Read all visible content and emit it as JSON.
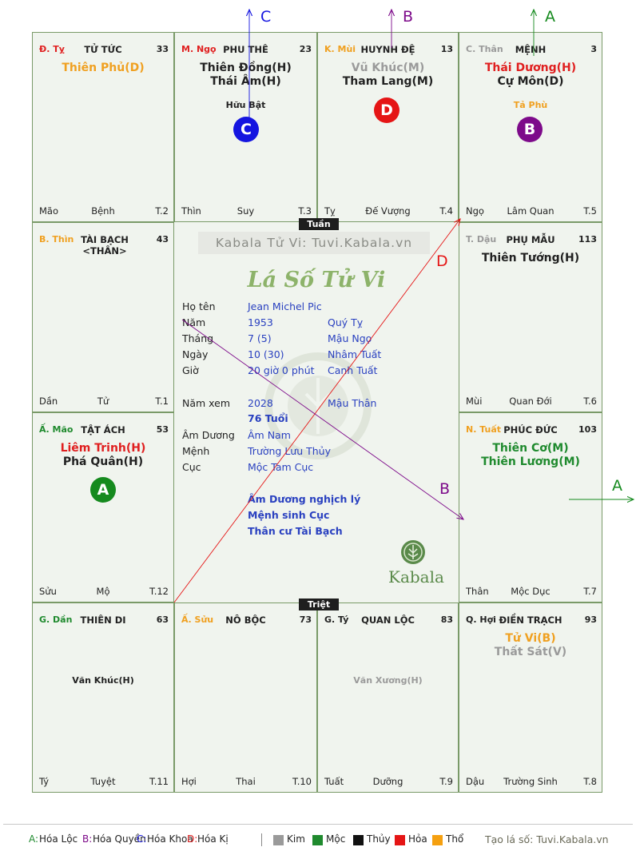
{
  "palaces": [
    {
      "id": "ti",
      "can": "Đ. Tỵ",
      "can_color": "#e02020",
      "title": "TỬ TỨC",
      "num": "33",
      "main": [
        {
          "t": "Thiên Phủ(D)",
          "c": "#f0a020"
        }
      ],
      "minor": [],
      "foot": [
        "Mão",
        "Bệnh",
        "T.2"
      ]
    },
    {
      "id": "ngo",
      "can": "M. Ngọ",
      "can_color": "#e02020",
      "title": "PHU THÊ",
      "num": "23",
      "main": [
        {
          "t": "Thiên Đồng(H)",
          "c": "#222222"
        },
        {
          "t": "Thái Âm(H)",
          "c": "#222222"
        }
      ],
      "minor": [
        {
          "t": "Hữu Bật",
          "c": "#222222"
        }
      ],
      "foot": [
        "Thìn",
        "Suy",
        "T.3"
      ]
    },
    {
      "id": "mui",
      "can": "K. Mùi",
      "can_color": "#f0a020",
      "title": "HUYNH ĐỆ",
      "num": "13",
      "main": [
        {
          "t": "Vũ Khúc(M)",
          "c": "#9a9a9a"
        },
        {
          "t": "Tham Lang(M)",
          "c": "#222222"
        }
      ],
      "minor": [],
      "foot": [
        "Tỵ",
        "Đế Vượng",
        "T.4"
      ]
    },
    {
      "id": "than",
      "can": "C. Thân",
      "can_color": "#9a9a9a",
      "title": "MỆNH",
      "num": "3",
      "main": [
        {
          "t": "Thái Dương(H)",
          "c": "#e02020"
        },
        {
          "t": "Cự Môn(D)",
          "c": "#222222"
        }
      ],
      "minor": [
        {
          "t": "Tả Phù",
          "c": "#f0a020"
        }
      ],
      "foot": [
        "Ngọ",
        "Lâm Quan",
        "T.5"
      ]
    },
    {
      "id": "thin",
      "can": "B. Thìn",
      "can_color": "#f0a020",
      "title": "TÀI BẠCH <THÂN>",
      "num": "43",
      "main": [],
      "minor": [],
      "foot": [
        "Dần",
        "Tử",
        "T.1"
      ]
    },
    {
      "id": "dau",
      "can": "T. Dậu",
      "can_color": "#9a9a9a",
      "title": "PHỤ MẪU",
      "num": "113",
      "main": [
        {
          "t": "Thiên Tướng(H)",
          "c": "#222222"
        }
      ],
      "minor": [],
      "foot": [
        "Mùi",
        "Quan Đới",
        "T.6"
      ]
    },
    {
      "id": "mao",
      "can": "Ấ. Mão",
      "can_color": "#1f8a2e",
      "title": "TẬT ÁCH",
      "num": "53",
      "main": [
        {
          "t": "Liêm Trinh(H)",
          "c": "#e02020"
        },
        {
          "t": "Phá Quân(H)",
          "c": "#222222"
        }
      ],
      "minor": [],
      "foot": [
        "Sửu",
        "Mộ",
        "T.12"
      ]
    },
    {
      "id": "tuat",
      "can": "N. Tuất",
      "can_color": "#f0a020",
      "title": "PHÚC ĐỨC",
      "num": "103",
      "main": [
        {
          "t": "Thiên Cơ(M)",
          "c": "#1f8a2e"
        },
        {
          "t": "Thiên Lương(M)",
          "c": "#1f8a2e"
        }
      ],
      "minor": [],
      "foot": [
        "Thân",
        "Mộc Dục",
        "T.7"
      ]
    },
    {
      "id": "dan",
      "can": "G. Dần",
      "can_color": "#1f8a2e",
      "title": "THIÊN DI",
      "num": "63",
      "main": [],
      "minor": [
        {
          "t": "Văn Khúc(H)",
          "c": "#222222"
        }
      ],
      "foot": [
        "Tý",
        "Tuyệt",
        "T.11"
      ]
    },
    {
      "id": "suu",
      "can": "Ấ. Sửu",
      "can_color": "#f0a020",
      "title": "NÔ BỘC",
      "num": "73",
      "main": [],
      "minor": [],
      "foot": [
        "Hợi",
        "Thai",
        "T.10"
      ]
    },
    {
      "id": "ty",
      "can": "G. Tý",
      "can_color": "#222222",
      "title": "QUAN LỘC",
      "num": "83",
      "main": [],
      "minor": [
        {
          "t": "Văn Xương(H)",
          "c": "#9a9a9a"
        }
      ],
      "foot": [
        "Tuất",
        "Dưỡng",
        "T.9"
      ]
    },
    {
      "id": "hoi",
      "can": "Q. Hợi",
      "can_color": "#222222",
      "title": "ĐIỀN TRẠCH",
      "num": "93",
      "main": [
        {
          "t": "Tử Vi(B)",
          "c": "#f0a020"
        },
        {
          "t": "Thất Sát(V)",
          "c": "#9a9a9a"
        }
      ],
      "minor": [],
      "foot": [
        "Dậu",
        "Trường Sinh",
        "T.8"
      ]
    }
  ],
  "badges": [
    {
      "label": "C",
      "color": "#1515e0",
      "palace": "ngo"
    },
    {
      "label": "D",
      "color": "#e51515",
      "palace": "mui"
    },
    {
      "label": "B",
      "color": "#7d0a8a",
      "palace": "than"
    },
    {
      "label": "A",
      "color": "#158a1e",
      "palace": "mao"
    }
  ],
  "tags": {
    "tuan": "Tuần",
    "triet": "Triệt"
  },
  "center": {
    "banner": "Kabala Tử Vi: Tuvi.Kabala.vn",
    "title": "Lá Số Tử Vi",
    "rows": [
      {
        "k": "Họ tên",
        "v": "Jean Michel Pic",
        "v2": ""
      },
      {
        "k": "Năm",
        "v": "1953",
        "v2": "Quý Tỵ"
      },
      {
        "k": "Tháng",
        "v": "7  (5)",
        "v2": "Mậu Ngọ"
      },
      {
        "k": "Ngày",
        "v": "10  (30)",
        "v2": "Nhâm Tuất"
      },
      {
        "k": "Giờ",
        "v": "20 giờ 0 phút",
        "v2": "Canh Tuất"
      }
    ],
    "nam_xem": {
      "k": "Năm xem",
      "v": "2028",
      "v2": "Mậu Thân"
    },
    "tuoi": "76 Tuổi",
    "rows2": [
      {
        "k": "Âm Dương",
        "v": "Âm Nam"
      },
      {
        "k": "Mệnh",
        "v": "Trường Lưu Thủy"
      },
      {
        "k": "Cục",
        "v": "Mộc Tam Cục"
      }
    ],
    "notes": [
      "Âm Dương nghịch lý",
      "Mệnh sinh Cục",
      "Thân cư Tài Bạch"
    ],
    "logo_text": "Kabala"
  },
  "arrow_labels": {
    "a_top": "A",
    "b_top": "B",
    "c_top": "C",
    "d_diag": "D",
    "b_diag": "B",
    "a_right": "A"
  },
  "legend": {
    "hoa": [
      {
        "key": "A:",
        "text": "Hóa Lộc",
        "color": "#1f8a2e"
      },
      {
        "key": "B:",
        "text": "Hóa Quyền",
        "color": "#7d0a8a"
      },
      {
        "key": "C:",
        "text": "Hóa Khoa",
        "color": "#1515e0"
      },
      {
        "key": "D:",
        "text": "Hóa Kị",
        "color": "#e02020"
      }
    ],
    "elements": [
      {
        "text": "Kim",
        "color": "#9a9a9a"
      },
      {
        "text": "Mộc",
        "color": "#1f8a2e"
      },
      {
        "text": "Thủy",
        "color": "#111111"
      },
      {
        "text": "Hỏa",
        "color": "#e51515"
      },
      {
        "text": "Thổ",
        "color": "#f5a010"
      }
    ],
    "credit": "Tạo lá số: Tuvi.Kabala.vn"
  }
}
